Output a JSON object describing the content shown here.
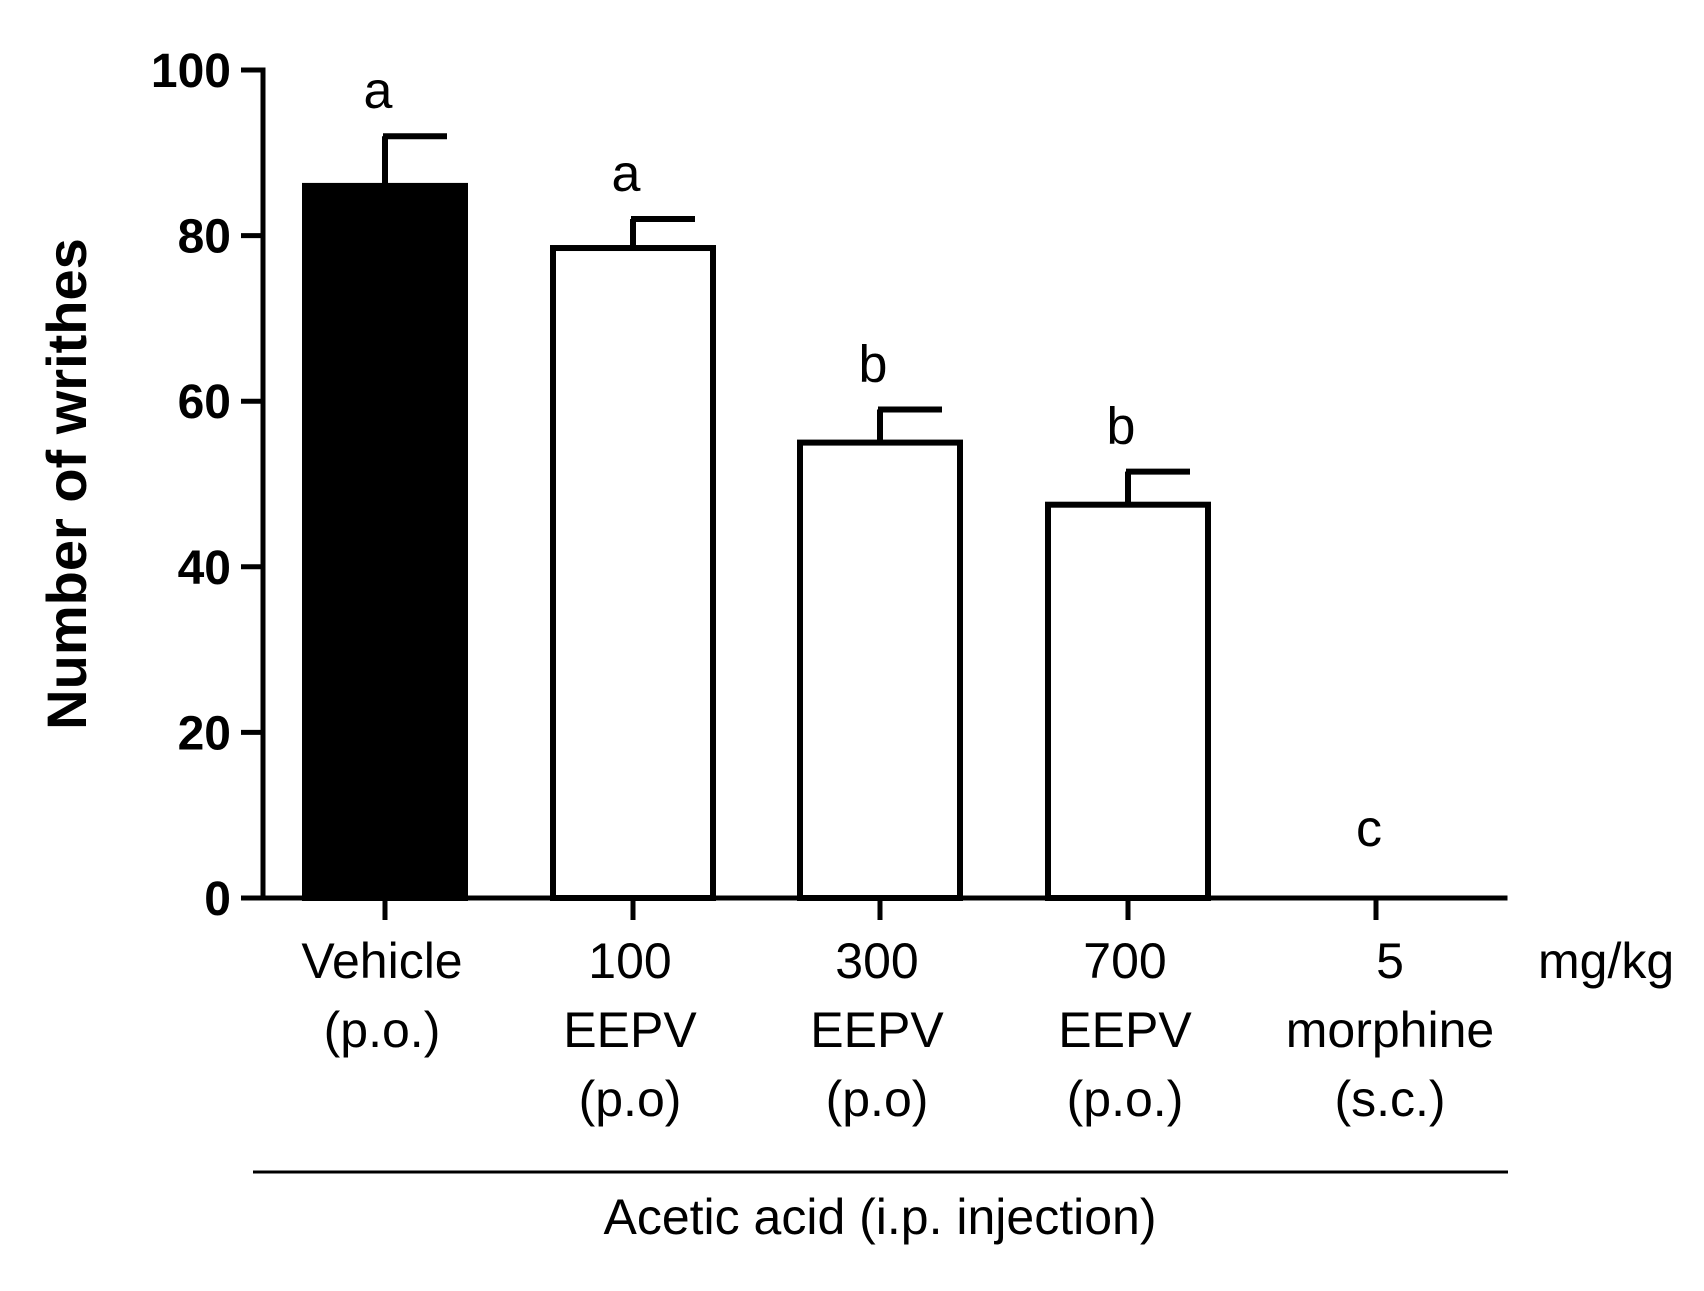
{
  "chart_data": {
    "type": "bar",
    "ylabel": "Number of writhes",
    "ylim": [
      0,
      100
    ],
    "yticks": [
      0,
      20,
      40,
      60,
      80,
      100
    ],
    "categories": [
      [
        "Vehicle",
        "(p.o.)"
      ],
      [
        "100",
        "EEPV",
        "(p.o)"
      ],
      [
        "300",
        "EEPV",
        "(p.o)"
      ],
      [
        "700",
        "EEPV",
        "(p.o.)"
      ],
      [
        "5",
        "morphine",
        "(s.c.)"
      ]
    ],
    "values": [
      86,
      78.5,
      55,
      47.5,
      0
    ],
    "errors": [
      6,
      3.5,
      4,
      4,
      0
    ],
    "significance": [
      "a",
      "a",
      "b",
      "b",
      "c"
    ],
    "fills": [
      "#000000",
      "#ffffff",
      "#ffffff",
      "#ffffff",
      "#ffffff"
    ],
    "unit_label": "mg/kg",
    "group_label": "Acetic acid (i.p. injection)"
  }
}
